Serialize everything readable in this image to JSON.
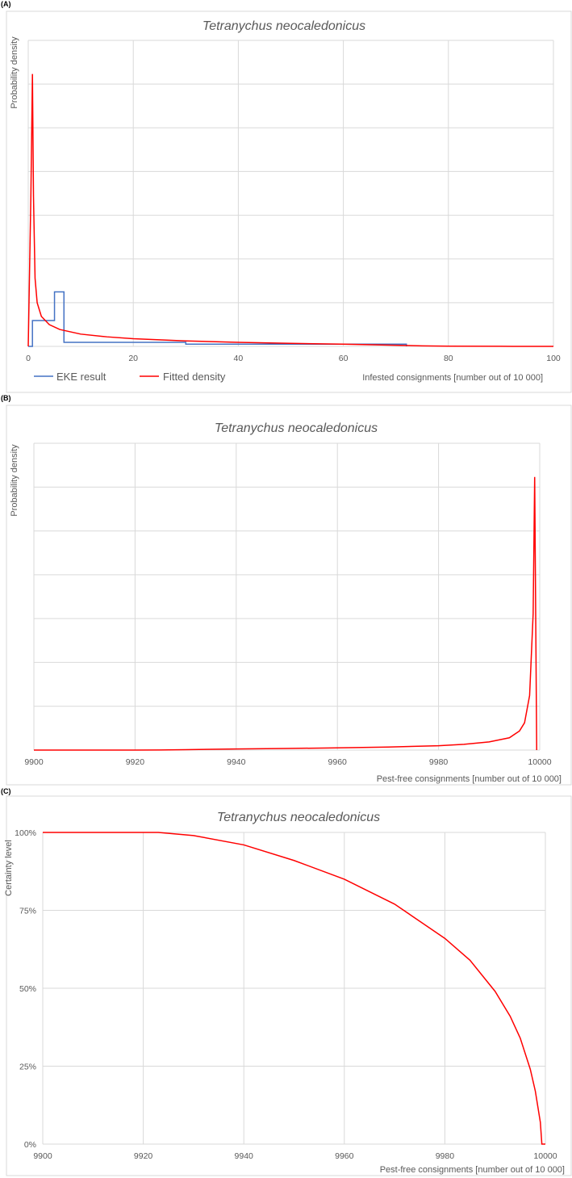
{
  "chart_data": [
    {
      "panel_label": "(A)",
      "type": "line",
      "title": "Tetranychus neocaledonicus",
      "xlabel": "Infested consignments [number out of 10 000]",
      "ylabel": "Probability density",
      "xlim": [
        0,
        100
      ],
      "xticks": [
        "0",
        "20",
        "40",
        "60",
        "80",
        "100"
      ],
      "grid": true,
      "legend_position": "bottom-left",
      "series": [
        {
          "name": "EKE result",
          "color": "#4472c4",
          "style": "step",
          "x": [
            0,
            0.8,
            5,
            6.8,
            30,
            72
          ],
          "y": [
            0,
            0.095,
            0.2,
            0.015,
            0.008,
            0
          ]
        },
        {
          "name": "Fitted density",
          "color": "#ff0000",
          "x": [
            0,
            0.5,
            0.8,
            1,
            1.3,
            1.7,
            2.5,
            4,
            6,
            10,
            15,
            20,
            30,
            40,
            50,
            60,
            70,
            75,
            80,
            90,
            100
          ],
          "y": [
            0,
            0.55,
            1.0,
            0.55,
            0.25,
            0.16,
            0.11,
            0.08,
            0.062,
            0.045,
            0.035,
            0.028,
            0.02,
            0.015,
            0.011,
            0.008,
            0.004,
            0.002,
            0.0008,
            0.0002,
            0.0001
          ]
        }
      ]
    },
    {
      "panel_label": "(B)",
      "type": "line",
      "title": "Tetranychus neocaledonicus",
      "xlabel": "Pest-free consignments [number out of 10 000]",
      "ylabel": "Probability density",
      "xlim": [
        9900,
        10000
      ],
      "xticks": [
        "9900",
        "9920",
        "9940",
        "9960",
        "9980",
        "10000"
      ],
      "grid": true,
      "series": [
        {
          "name": "Fitted density",
          "color": "#ff0000",
          "x": [
            9900,
            9920,
            9925,
            9930,
            9940,
            9950,
            9960,
            9970,
            9980,
            9985,
            9990,
            9994,
            9996,
            9997,
            9998,
            9998.7,
            9999,
            9999.2,
            9999.4
          ],
          "y": [
            0,
            0,
            0.0005,
            0.0015,
            0.004,
            0.006,
            0.008,
            0.011,
            0.016,
            0.021,
            0.03,
            0.045,
            0.07,
            0.1,
            0.2,
            0.5,
            1.0,
            0.5,
            0
          ]
        }
      ]
    },
    {
      "panel_label": "(C)",
      "type": "line",
      "title": "Tetranychus neocaledonicus",
      "xlabel": "Pest-free consignments [number out of 10 000]",
      "ylabel": "Certainty level",
      "xlim": [
        9900,
        10000
      ],
      "ylim": [
        0,
        1
      ],
      "xticks": [
        "9900",
        "9920",
        "9940",
        "9960",
        "9980",
        "10000"
      ],
      "yticks": [
        "0%",
        "25%",
        "50%",
        "75%",
        "100%"
      ],
      "grid": true,
      "series": [
        {
          "name": "Certainty",
          "color": "#ff0000",
          "x": [
            9900,
            9923,
            9930,
            9940,
            9950,
            9960,
            9970,
            9980,
            9985,
            9990,
            9993,
            9995,
            9997,
            9998,
            9999,
            9999.3,
            10000
          ],
          "y": [
            1.0,
            1.0,
            0.99,
            0.96,
            0.91,
            0.85,
            0.77,
            0.66,
            0.59,
            0.49,
            0.41,
            0.34,
            0.24,
            0.17,
            0.07,
            0,
            0
          ]
        }
      ]
    }
  ]
}
